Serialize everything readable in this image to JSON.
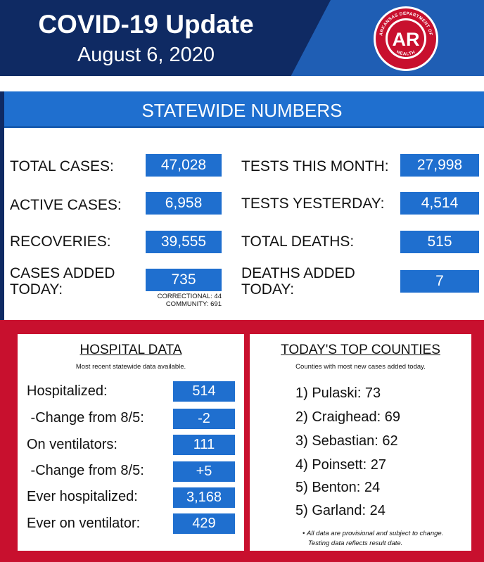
{
  "header": {
    "title": "COVID-19 Update",
    "date": "August 6, 2020",
    "logo": {
      "text": "AR",
      "ring_top": "ARKANSAS DEPARTMENT OF",
      "ring_bottom": "HEALTH"
    }
  },
  "statewide": {
    "title": "STATEWIDE NUMBERS",
    "left": [
      {
        "label": "TOTAL CASES:",
        "value": "47,028"
      },
      {
        "label": "ACTIVE CASES:",
        "value": "6,958"
      },
      {
        "label": "RECOVERIES:",
        "value": "39,555"
      },
      {
        "label_line1": "CASES ADDED",
        "label_line2": "TODAY:",
        "value": "735",
        "note1": "CORRECTIONAL: 44",
        "note2": "COMMUNITY: 691"
      }
    ],
    "right": [
      {
        "label": "TESTS THIS MONTH:",
        "value": "27,998"
      },
      {
        "label": "TESTS YESTERDAY:",
        "value": "4,514"
      },
      {
        "label": "TOTAL DEATHS:",
        "value": "515"
      },
      {
        "label_line1": "DEATHS ADDED",
        "label_line2": "TODAY:",
        "value": "7"
      }
    ]
  },
  "hospital": {
    "title": "HOSPITAL DATA",
    "subtitle": "Most recent statewide data available.",
    "rows": [
      {
        "label": "Hospitalized:",
        "value": "514"
      },
      {
        "label": " -Change from 8/5:",
        "value": "-2"
      },
      {
        "label": "On ventilators:",
        "value": "111"
      },
      {
        "label": " -Change from 8/5:",
        "value": "+5"
      },
      {
        "label": "Ever hospitalized:",
        "value": "3,168"
      },
      {
        "label": "Ever on ventilator:",
        "value": "429"
      }
    ]
  },
  "counties": {
    "title": "TODAY'S TOP COUNTIES",
    "subtitle": "Counties with most new cases added today.",
    "items": [
      "1) Pulaski: 73",
      "2) Craighead: 69",
      "3) Sebastian: 62",
      "4) Poinsett: 27",
      "5) Benton: 24",
      "5) Garland: 24"
    ],
    "footnote_line1": "All data are provisional and subject to change.",
    "footnote_line2": "Testing data reflects result date."
  },
  "colors": {
    "navy": "#0f2a63",
    "blue": "#1f6fcf",
    "red": "#c8102e"
  }
}
